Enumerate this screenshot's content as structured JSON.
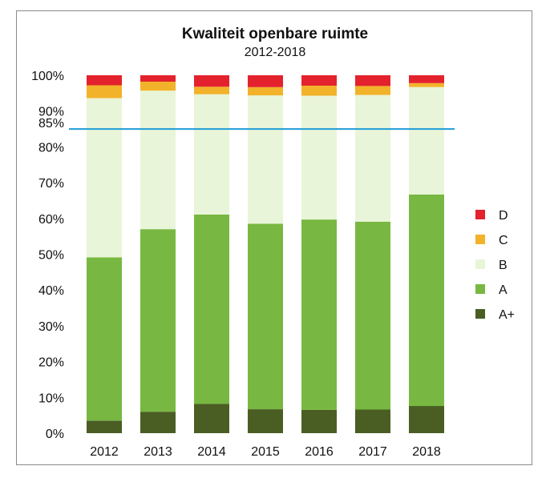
{
  "chart_data": {
    "type": "bar",
    "stacked": true,
    "title": "Kwaliteit openbare ruimte",
    "subtitle": "2012-2018",
    "xlabel": "",
    "ylabel": "",
    "ylim": [
      0,
      100
    ],
    "y_unit": "%",
    "yticks": [
      "0%",
      "10%",
      "20%",
      "30%",
      "40%",
      "50%",
      "60%",
      "70%",
      "80%",
      "90%",
      "100%"
    ],
    "categories": [
      "2012",
      "2013",
      "2014",
      "2015",
      "2016",
      "2017",
      "2018"
    ],
    "series": [
      {
        "name": "A+",
        "color": "#4a5e23",
        "values": [
          3.5,
          6,
          8.2,
          6.7,
          6.5,
          6.6,
          7.6
        ]
      },
      {
        "name": "A",
        "color": "#78b842",
        "values": [
          45.6,
          51,
          52.9,
          51.8,
          53.2,
          52.5,
          59.1
        ]
      },
      {
        "name": "B",
        "color": "#e9f5d8",
        "values": [
          44.5,
          38.7,
          33.6,
          35.9,
          34.6,
          35.4,
          30
        ]
      },
      {
        "name": "C",
        "color": "#f2b22a",
        "values": [
          3.6,
          2.5,
          2.1,
          2.3,
          2.8,
          2.5,
          1.1
        ]
      },
      {
        "name": "D",
        "color": "#e3222d",
        "values": [
          2.8,
          1.8,
          3.2,
          3.3,
          2.9,
          3,
          2.2
        ]
      }
    ],
    "reference_line": {
      "label": "85%",
      "value": 85,
      "color": "#1f9bd7"
    },
    "legend_order": [
      "D",
      "C",
      "B",
      "A",
      "A+"
    ],
    "legend_position": "right",
    "grid": false
  }
}
